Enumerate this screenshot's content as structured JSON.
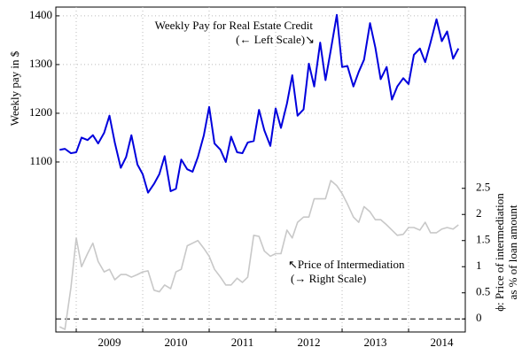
{
  "chart_data": {
    "type": "line",
    "y_label": "Weekly pay in $",
    "y2_label": [
      "ϕ: Price of intermediation",
      "as % of loan amount"
    ],
    "annotations": [
      [
        "Weekly Pay for Real Estate Credit",
        "(← Left Scale)↘"
      ],
      [
        "↖Price of Intermediation",
        "(→ Right Scale)"
      ]
    ],
    "x": [
      2008.75,
      2008.83,
      2008.92,
      2009,
      2009.08,
      2009.17,
      2009.25,
      2009.33,
      2009.42,
      2009.5,
      2009.58,
      2009.67,
      2009.75,
      2009.83,
      2009.92,
      2010,
      2010.08,
      2010.17,
      2010.25,
      2010.33,
      2010.42,
      2010.5,
      2010.58,
      2010.67,
      2010.75,
      2010.83,
      2010.92,
      2011,
      2011.08,
      2011.17,
      2011.25,
      2011.33,
      2011.42,
      2011.5,
      2011.58,
      2011.67,
      2011.75,
      2011.83,
      2011.92,
      2012,
      2012.08,
      2012.17,
      2012.25,
      2012.33,
      2012.42,
      2012.5,
      2012.58,
      2012.67,
      2012.75,
      2012.83,
      2012.92,
      2013,
      2013.08,
      2013.17,
      2013.25,
      2013.33,
      2013.42,
      2013.5,
      2013.58,
      2013.67,
      2013.75,
      2013.83,
      2013.92,
      2014,
      2014.08,
      2014.17,
      2014.25,
      2014.33,
      2014.42,
      2014.5,
      2014.58,
      2014.67,
      2014.75
    ],
    "series": [
      {
        "color": "#0000dd",
        "values": [
          1125,
          1127,
          1118,
          1120,
          1150,
          1145,
          1155,
          1138,
          1160,
          1195,
          1140,
          1088,
          1110,
          1155,
          1095,
          1075,
          1037,
          1055,
          1075,
          1112,
          1040,
          1045,
          1105,
          1085,
          1080,
          1110,
          1155,
          1213,
          1138,
          1125,
          1100,
          1152,
          1120,
          1118,
          1140,
          1143,
          1207,
          1165,
          1133,
          1210,
          1170,
          1220,
          1278,
          1195,
          1208,
          1302,
          1255,
          1345,
          1268,
          1330,
          1402,
          1295,
          1297,
          1255,
          1285,
          1310,
          1385,
          1335,
          1270,
          1295,
          1228,
          1255,
          1272,
          1260,
          1320,
          1333,
          1305,
          1345,
          1393,
          1348,
          1368,
          1312,
          1333
        ]
      },
      {
        "color": "#c8c8c8",
        "axis": "y2",
        "values": [
          -0.15,
          -0.2,
          0.6,
          1.55,
          1.0,
          1.25,
          1.45,
          1.1,
          0.9,
          0.95,
          0.75,
          0.85,
          0.85,
          0.8,
          0.85,
          0.9,
          0.92,
          0.55,
          0.52,
          0.65,
          0.58,
          0.9,
          0.95,
          1.4,
          1.45,
          1.5,
          1.35,
          1.2,
          0.95,
          0.8,
          0.65,
          0.65,
          0.78,
          0.7,
          0.8,
          1.6,
          1.58,
          1.3,
          1.2,
          1.25,
          1.25,
          1.7,
          1.55,
          1.85,
          1.95,
          1.95,
          2.3,
          2.3,
          2.3,
          2.65,
          2.55,
          2.4,
          2.2,
          1.95,
          1.85,
          2.15,
          2.05,
          1.9,
          1.9,
          1.8,
          1.7,
          1.6,
          1.62,
          1.75,
          1.75,
          1.7,
          1.85,
          1.65,
          1.65,
          1.72,
          1.75,
          1.72,
          1.8
        ]
      }
    ],
    "xlim": [
      2008.693,
      2014.853
    ],
    "xticks": [
      2009,
      2010,
      2011,
      2012,
      2013,
      2014
    ],
    "ylim": [
      751,
      1418
    ],
    "yticks": [
      1100,
      1200,
      1300,
      1400
    ],
    "y2lim": [
      -0.25,
      5.97
    ],
    "y2ticks": [
      0,
      0.5,
      1,
      1.5,
      2,
      2.5
    ],
    "grid": true
  }
}
